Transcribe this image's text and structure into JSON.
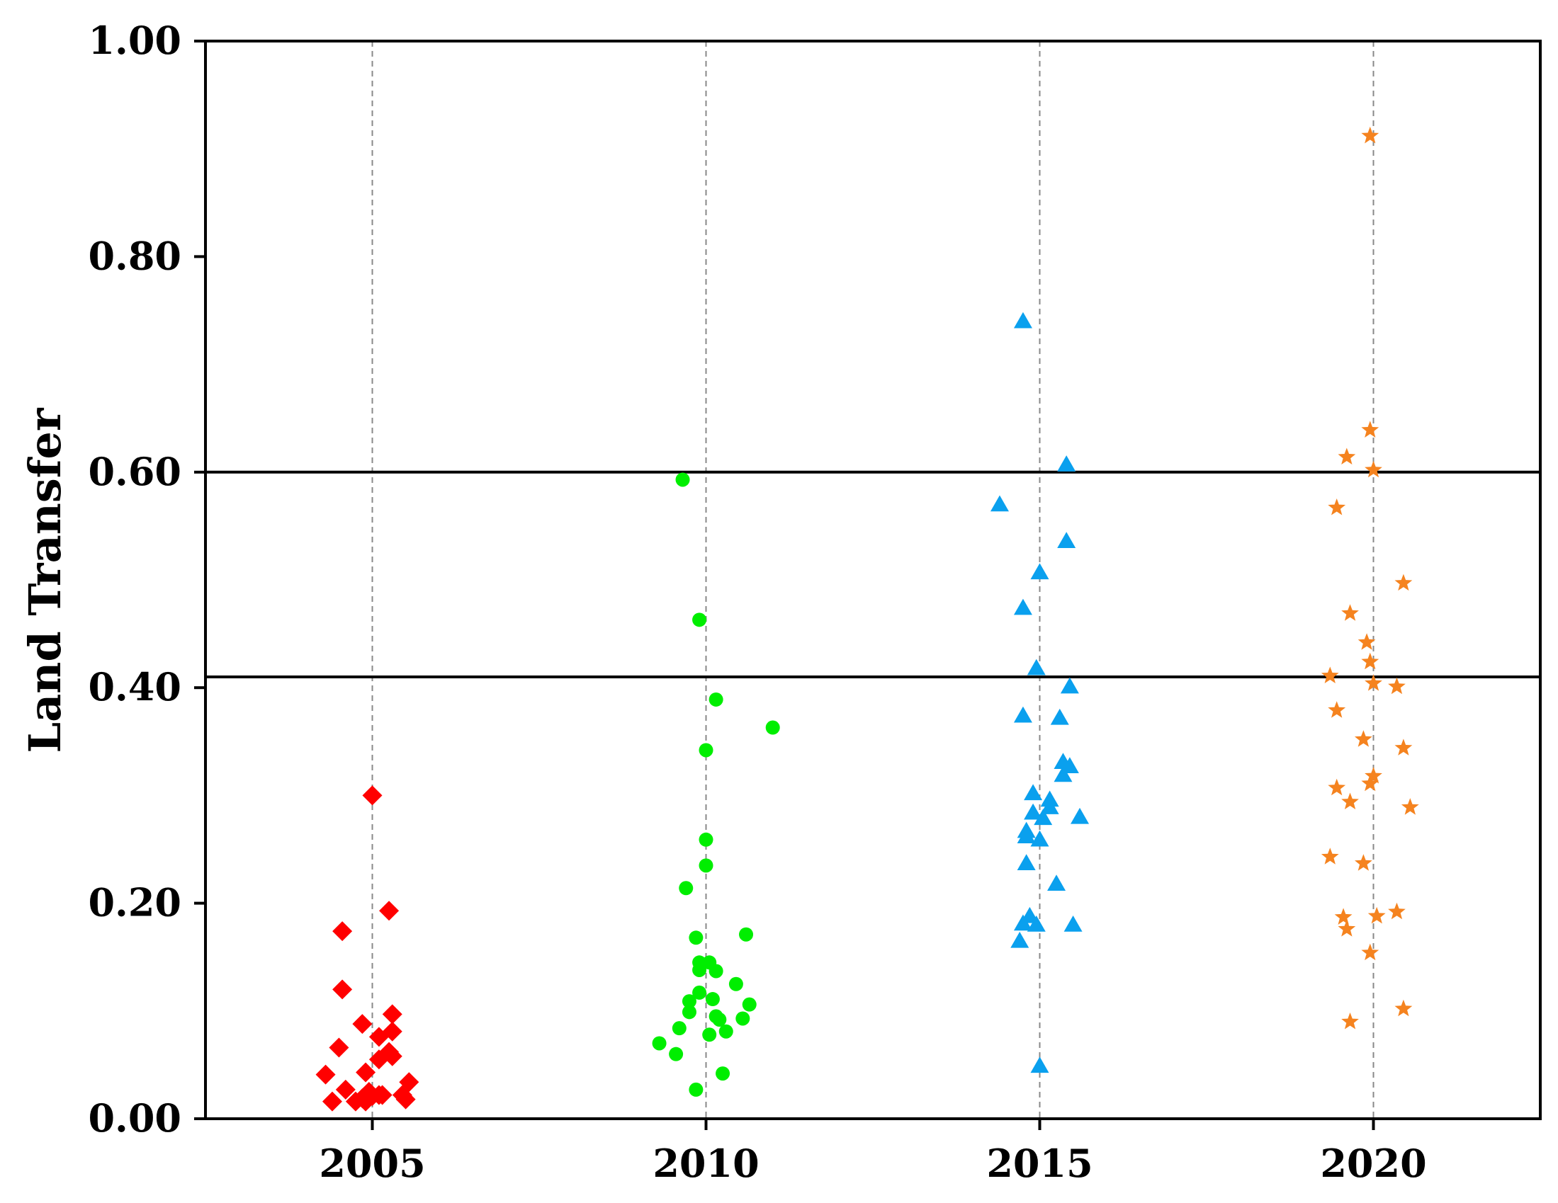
{
  "chart_data": {
    "type": "scatter",
    "title": "",
    "xlabel": "",
    "ylabel": "Land Transfer",
    "xlim": [
      2002.5,
      2022.5
    ],
    "ylim": [
      0,
      1.0
    ],
    "x_ticks": [
      2005,
      2010,
      2015,
      2020
    ],
    "x_tick_labels": [
      "2005",
      "2010",
      "2015",
      "2020"
    ],
    "y_ticks": [
      0,
      0.2,
      0.4,
      0.6,
      0.8,
      1.0
    ],
    "y_tick_labels": [
      "0.00",
      "0.20",
      "0.40",
      "0.60",
      "0.80",
      "1.00"
    ],
    "reference_lines_y": [
      0.41,
      0.6
    ],
    "grid": "vertical dashed lines at x ticks",
    "series": [
      {
        "name": "",
        "category": "2005",
        "marker": "diamond",
        "color": "#ff0000",
        "points": [
          [
            2005.0,
            0.3
          ],
          [
            2005.25,
            0.193
          ],
          [
            2004.55,
            0.174
          ],
          [
            2004.55,
            0.12
          ],
          [
            2005.3,
            0.097
          ],
          [
            2004.85,
            0.088
          ],
          [
            2005.3,
            0.081
          ],
          [
            2005.1,
            0.076
          ],
          [
            2004.5,
            0.066
          ],
          [
            2005.25,
            0.062
          ],
          [
            2005.3,
            0.058
          ],
          [
            2005.1,
            0.055
          ],
          [
            2004.3,
            0.041
          ],
          [
            2004.9,
            0.043
          ],
          [
            2005.55,
            0.034
          ],
          [
            2004.6,
            0.027
          ],
          [
            2004.95,
            0.025
          ],
          [
            2005.1,
            0.022
          ],
          [
            2005.0,
            0.021
          ],
          [
            2005.45,
            0.022
          ],
          [
            2004.85,
            0.019
          ],
          [
            2004.75,
            0.016
          ],
          [
            2005.15,
            0.022
          ],
          [
            2005.5,
            0.018
          ],
          [
            2004.9,
            0.016
          ],
          [
            2004.4,
            0.016
          ]
        ]
      },
      {
        "name": "",
        "category": "2010",
        "marker": "circle",
        "color": "#00ee00",
        "points": [
          [
            2009.65,
            0.593
          ],
          [
            2009.9,
            0.463
          ],
          [
            2010.15,
            0.389
          ],
          [
            2011.0,
            0.363
          ],
          [
            2010.0,
            0.342
          ],
          [
            2010.0,
            0.259
          ],
          [
            2010.0,
            0.235
          ],
          [
            2009.7,
            0.214
          ],
          [
            2010.6,
            0.171
          ],
          [
            2009.85,
            0.168
          ],
          [
            2009.9,
            0.145
          ],
          [
            2010.05,
            0.145
          ],
          [
            2010.15,
            0.137
          ],
          [
            2009.9,
            0.138
          ],
          [
            2010.45,
            0.125
          ],
          [
            2009.9,
            0.117
          ],
          [
            2010.1,
            0.111
          ],
          [
            2009.75,
            0.109
          ],
          [
            2010.65,
            0.106
          ],
          [
            2009.75,
            0.099
          ],
          [
            2010.15,
            0.095
          ],
          [
            2010.2,
            0.092
          ],
          [
            2010.55,
            0.093
          ],
          [
            2009.6,
            0.084
          ],
          [
            2010.3,
            0.081
          ],
          [
            2010.05,
            0.078
          ],
          [
            2009.3,
            0.07
          ],
          [
            2009.55,
            0.06
          ],
          [
            2010.25,
            0.042
          ],
          [
            2009.85,
            0.027
          ]
        ]
      },
      {
        "name": "",
        "category": "2015",
        "marker": "triangle",
        "color": "#0aa0ee",
        "points": [
          [
            2014.75,
            0.74
          ],
          [
            2015.4,
            0.607
          ],
          [
            2014.4,
            0.57
          ],
          [
            2015.4,
            0.536
          ],
          [
            2015.0,
            0.507
          ],
          [
            2014.75,
            0.474
          ],
          [
            2014.95,
            0.418
          ],
          [
            2015.45,
            0.401
          ],
          [
            2014.75,
            0.374
          ],
          [
            2015.3,
            0.372
          ],
          [
            2015.35,
            0.331
          ],
          [
            2015.45,
            0.327
          ],
          [
            2015.35,
            0.319
          ],
          [
            2014.9,
            0.302
          ],
          [
            2015.15,
            0.296
          ],
          [
            2015.15,
            0.289
          ],
          [
            2014.9,
            0.284
          ],
          [
            2015.6,
            0.28
          ],
          [
            2015.05,
            0.279
          ],
          [
            2014.8,
            0.267
          ],
          [
            2014.8,
            0.262
          ],
          [
            2015.0,
            0.259
          ],
          [
            2014.8,
            0.237
          ],
          [
            2015.25,
            0.218
          ],
          [
            2014.85,
            0.188
          ],
          [
            2014.75,
            0.181
          ],
          [
            2014.95,
            0.18
          ],
          [
            2015.5,
            0.18
          ],
          [
            2014.7,
            0.165
          ],
          [
            2015.0,
            0.049
          ]
        ]
      },
      {
        "name": "",
        "category": "2020",
        "marker": "star",
        "color": "#f5831f",
        "points": [
          [
            2019.95,
            0.912
          ],
          [
            2019.95,
            0.639
          ],
          [
            2019.6,
            0.614
          ],
          [
            2020.0,
            0.602
          ],
          [
            2019.45,
            0.567
          ],
          [
            2020.45,
            0.497
          ],
          [
            2019.65,
            0.469
          ],
          [
            2019.9,
            0.442
          ],
          [
            2019.95,
            0.424
          ],
          [
            2019.35,
            0.411
          ],
          [
            2020.0,
            0.404
          ],
          [
            2020.35,
            0.401
          ],
          [
            2019.45,
            0.379
          ],
          [
            2019.85,
            0.352
          ],
          [
            2020.45,
            0.344
          ],
          [
            2020.0,
            0.318
          ],
          [
            2019.95,
            0.311
          ],
          [
            2019.45,
            0.307
          ],
          [
            2019.65,
            0.294
          ],
          [
            2020.55,
            0.289
          ],
          [
            2019.35,
            0.243
          ],
          [
            2019.85,
            0.237
          ],
          [
            2020.35,
            0.192
          ],
          [
            2020.05,
            0.188
          ],
          [
            2019.55,
            0.187
          ],
          [
            2019.6,
            0.176
          ],
          [
            2019.95,
            0.154
          ],
          [
            2020.45,
            0.102
          ],
          [
            2019.65,
            0.09
          ]
        ]
      }
    ]
  }
}
